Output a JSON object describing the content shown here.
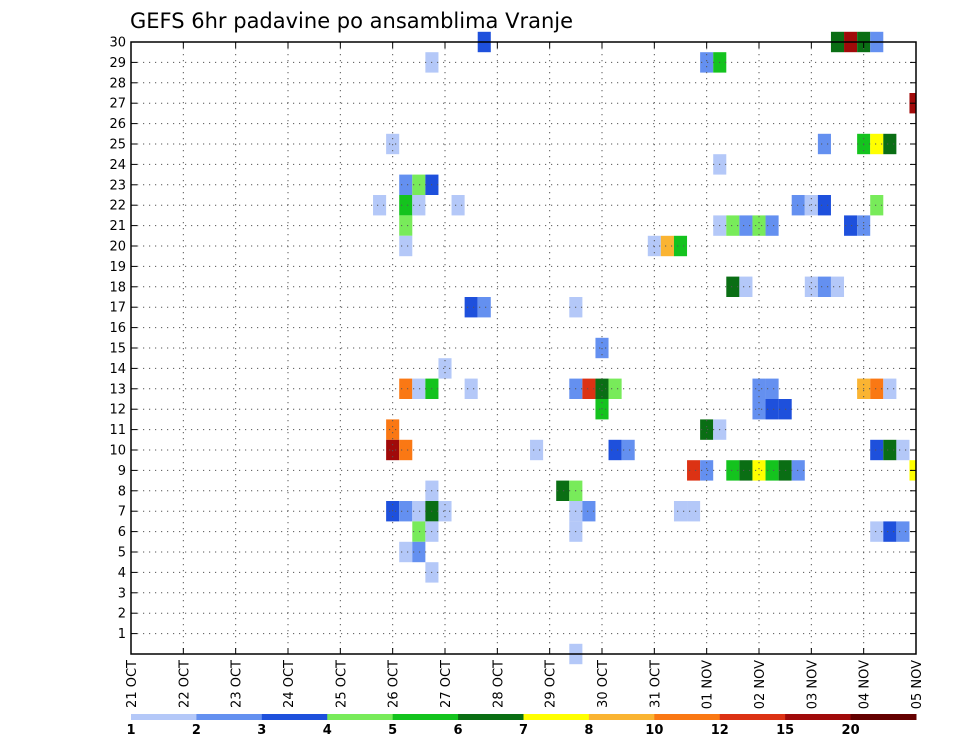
{
  "chart_data": {
    "type": "heatmap",
    "title": "GEFS 6hr padavine po ansamblima Vranje",
    "xlabel": "",
    "ylabel": "",
    "y_ticks": [
      "1",
      "2",
      "3",
      "4",
      "5",
      "6",
      "7",
      "8",
      "9",
      "10",
      "11",
      "12",
      "13",
      "14",
      "15",
      "16",
      "17",
      "18",
      "19",
      "20",
      "21",
      "22",
      "23",
      "24",
      "25",
      "26",
      "27",
      "28",
      "29",
      "30"
    ],
    "x_ticks": [
      "21 OCT",
      "22 OCT",
      "23 OCT",
      "24 OCT",
      "25 OCT",
      "26 OCT",
      "27 OCT",
      "28 OCT",
      "29 OCT",
      "30 OCT",
      "31 OCT",
      "01 NOV",
      "02 NOV",
      "03 NOV",
      "04 NOV",
      "05 NOV"
    ],
    "x_range_days": [
      0,
      15
    ],
    "y_range": [
      0,
      30
    ],
    "grid": true,
    "legend": {
      "placement": "bottom",
      "labels": [
        "1",
        "2",
        "3",
        "4",
        "5",
        "6",
        "7",
        "8",
        "10",
        "12",
        "15",
        "20"
      ],
      "colors": [
        "#b4c8f8",
        "#6490f0",
        "#1e50dc",
        "#78eb5a",
        "#14c31e",
        "#0a6e14",
        "#ffff00",
        "#fab432",
        "#fa7814",
        "#dc3214",
        "#a00a0a",
        "#640000"
      ]
    },
    "cells": [
      {
        "m": 30,
        "d": 6.75,
        "c": 3
      },
      {
        "m": 30,
        "d": 13.5,
        "c": 6
      },
      {
        "m": 30,
        "d": 13.75,
        "c": 11
      },
      {
        "m": 30,
        "d": 14.0,
        "c": 6
      },
      {
        "m": 30,
        "d": 14.25,
        "c": 2
      },
      {
        "m": 29,
        "d": 5.75,
        "c": 1
      },
      {
        "m": 29,
        "d": 11.0,
        "c": 2
      },
      {
        "m": 29,
        "d": 11.25,
        "c": 5
      },
      {
        "m": 27,
        "d": 15.0,
        "c": 11
      },
      {
        "m": 25,
        "d": 5.0,
        "c": 1
      },
      {
        "m": 25,
        "d": 13.25,
        "c": 2
      },
      {
        "m": 25,
        "d": 14.0,
        "c": 5
      },
      {
        "m": 25,
        "d": 14.25,
        "c": 7
      },
      {
        "m": 25,
        "d": 14.5,
        "c": 6
      },
      {
        "m": 24,
        "d": 11.25,
        "c": 1
      },
      {
        "m": 23,
        "d": 5.25,
        "c": 2
      },
      {
        "m": 23,
        "d": 5.5,
        "c": 4
      },
      {
        "m": 23,
        "d": 5.75,
        "c": 3
      },
      {
        "m": 22,
        "d": 4.75,
        "c": 1
      },
      {
        "m": 22,
        "d": 5.25,
        "c": 5
      },
      {
        "m": 22,
        "d": 5.5,
        "c": 1
      },
      {
        "m": 22,
        "d": 6.25,
        "c": 1
      },
      {
        "m": 22,
        "d": 12.75,
        "c": 2
      },
      {
        "m": 22,
        "d": 13.0,
        "c": 1
      },
      {
        "m": 22,
        "d": 13.25,
        "c": 3
      },
      {
        "m": 22,
        "d": 14.25,
        "c": 4
      },
      {
        "m": 21,
        "d": 5.25,
        "c": 4
      },
      {
        "m": 21,
        "d": 11.25,
        "c": 1
      },
      {
        "m": 21,
        "d": 11.5,
        "c": 4
      },
      {
        "m": 21,
        "d": 11.75,
        "c": 2
      },
      {
        "m": 21,
        "d": 12.0,
        "c": 4
      },
      {
        "m": 21,
        "d": 12.25,
        "c": 2
      },
      {
        "m": 21,
        "d": 13.75,
        "c": 3
      },
      {
        "m": 21,
        "d": 14.0,
        "c": 2
      },
      {
        "m": 20,
        "d": 5.25,
        "c": 1
      },
      {
        "m": 20,
        "d": 10.0,
        "c": 1
      },
      {
        "m": 20,
        "d": 10.25,
        "c": 8
      },
      {
        "m": 20,
        "d": 10.5,
        "c": 5
      },
      {
        "m": 18,
        "d": 11.5,
        "c": 6
      },
      {
        "m": 18,
        "d": 11.75,
        "c": 1
      },
      {
        "m": 18,
        "d": 13.0,
        "c": 1
      },
      {
        "m": 18,
        "d": 13.25,
        "c": 2
      },
      {
        "m": 18,
        "d": 13.5,
        "c": 1
      },
      {
        "m": 17,
        "d": 6.5,
        "c": 3
      },
      {
        "m": 17,
        "d": 6.75,
        "c": 2
      },
      {
        "m": 17,
        "d": 8.5,
        "c": 1
      },
      {
        "m": 15,
        "d": 9.0,
        "c": 2
      },
      {
        "m": 14,
        "d": 6.0,
        "c": 1
      },
      {
        "m": 13,
        "d": 5.25,
        "c": 9
      },
      {
        "m": 13,
        "d": 5.5,
        "c": 1
      },
      {
        "m": 13,
        "d": 5.75,
        "c": 5
      },
      {
        "m": 13,
        "d": 6.5,
        "c": 1
      },
      {
        "m": 13,
        "d": 8.5,
        "c": 2
      },
      {
        "m": 13,
        "d": 8.75,
        "c": 10
      },
      {
        "m": 13,
        "d": 9.0,
        "c": 6
      },
      {
        "m": 13,
        "d": 9.25,
        "c": 4
      },
      {
        "m": 13,
        "d": 12.0,
        "c": 2
      },
      {
        "m": 13,
        "d": 12.25,
        "c": 2
      },
      {
        "m": 13,
        "d": 14.0,
        "c": 8
      },
      {
        "m": 13,
        "d": 14.25,
        "c": 9
      },
      {
        "m": 13,
        "d": 14.5,
        "c": 1
      },
      {
        "m": 12,
        "d": 9.0,
        "c": 5
      },
      {
        "m": 12,
        "d": 12.0,
        "c": 2
      },
      {
        "m": 12,
        "d": 12.25,
        "c": 3
      },
      {
        "m": 12,
        "d": 12.5,
        "c": 3
      },
      {
        "m": 11,
        "d": 5.0,
        "c": 9
      },
      {
        "m": 11,
        "d": 11.0,
        "c": 6
      },
      {
        "m": 11,
        "d": 11.25,
        "c": 1
      },
      {
        "m": 10,
        "d": 5.0,
        "c": 11
      },
      {
        "m": 10,
        "d": 5.25,
        "c": 9
      },
      {
        "m": 10,
        "d": 7.75,
        "c": 1
      },
      {
        "m": 10,
        "d": 9.25,
        "c": 3
      },
      {
        "m": 10,
        "d": 9.5,
        "c": 2
      },
      {
        "m": 10,
        "d": 14.25,
        "c": 3
      },
      {
        "m": 10,
        "d": 14.5,
        "c": 6
      },
      {
        "m": 10,
        "d": 14.75,
        "c": 1
      },
      {
        "m": 9,
        "d": 10.75,
        "c": 10
      },
      {
        "m": 9,
        "d": 11.0,
        "c": 2
      },
      {
        "m": 9,
        "d": 11.5,
        "c": 5
      },
      {
        "m": 9,
        "d": 11.75,
        "c": 6
      },
      {
        "m": 9,
        "d": 12.0,
        "c": 7
      },
      {
        "m": 9,
        "d": 12.25,
        "c": 5
      },
      {
        "m": 9,
        "d": 12.5,
        "c": 6
      },
      {
        "m": 9,
        "d": 12.75,
        "c": 2
      },
      {
        "m": 9,
        "d": 15.0,
        "c": 7
      },
      {
        "m": 8,
        "d": 5.75,
        "c": 1
      },
      {
        "m": 8,
        "d": 8.25,
        "c": 6
      },
      {
        "m": 8,
        "d": 8.5,
        "c": 4
      },
      {
        "m": 7,
        "d": 5.0,
        "c": 3
      },
      {
        "m": 7,
        "d": 5.25,
        "c": 2
      },
      {
        "m": 7,
        "d": 5.5,
        "c": 1
      },
      {
        "m": 7,
        "d": 5.75,
        "c": 6
      },
      {
        "m": 7,
        "d": 6.0,
        "c": 1
      },
      {
        "m": 7,
        "d": 8.5,
        "c": 1
      },
      {
        "m": 7,
        "d": 8.75,
        "c": 2
      },
      {
        "m": 7,
        "d": 10.5,
        "c": 1
      },
      {
        "m": 7,
        "d": 10.75,
        "c": 1
      },
      {
        "m": 6,
        "d": 5.5,
        "c": 4
      },
      {
        "m": 6,
        "d": 5.75,
        "c": 1
      },
      {
        "m": 6,
        "d": 8.5,
        "c": 1
      },
      {
        "m": 6,
        "d": 14.25,
        "c": 1
      },
      {
        "m": 6,
        "d": 14.5,
        "c": 3
      },
      {
        "m": 6,
        "d": 14.75,
        "c": 2
      },
      {
        "m": 5,
        "d": 5.25,
        "c": 1
      },
      {
        "m": 5,
        "d": 5.5,
        "c": 2
      },
      {
        "m": 4,
        "d": 5.75,
        "c": 1
      },
      {
        "m": 0,
        "d": 8.5,
        "c": 1
      }
    ]
  }
}
